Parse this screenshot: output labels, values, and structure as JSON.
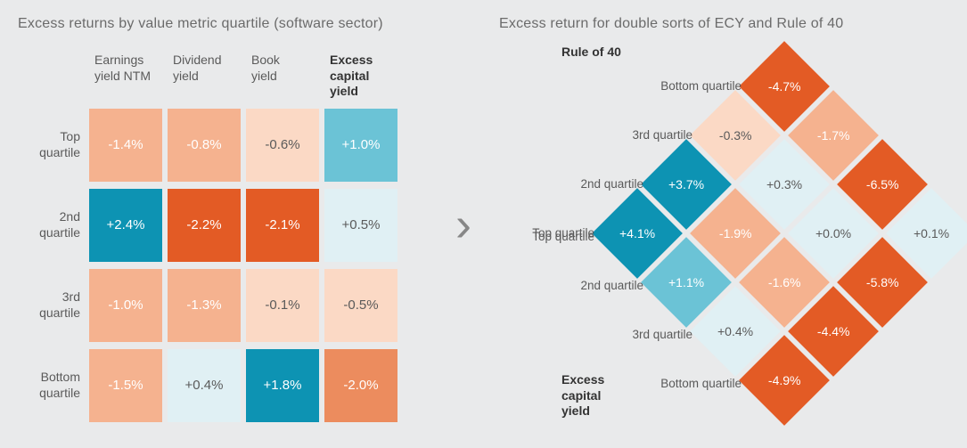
{
  "palette": {
    "bg": "#e9eaeb",
    "text": "#5a5a5a",
    "text_bold": "#333333",
    "dark_orange": "#e35b25",
    "mid_orange": "#ec8c5e",
    "light_orange": "#f5b28f",
    "pale_orange": "#fbd9c5",
    "dark_teal": "#0d93b3",
    "mid_teal": "#6bc3d6",
    "light_teal": "#c2e4ec",
    "very_light_teal": "#e0f0f4"
  },
  "left": {
    "title": "Excess returns by value metric quartile (software sector)",
    "col_headers": [
      {
        "l1": "Earnings",
        "l2": "yield NTM",
        "bold": false
      },
      {
        "l1": "Dividend",
        "l2": "yield",
        "bold": false
      },
      {
        "l1": "Book",
        "l2": "yield",
        "bold": false
      },
      {
        "l1": "Excess",
        "l2": "capital",
        "l3": "yield",
        "bold": true
      }
    ],
    "row_labels": [
      {
        "l1": "Top",
        "l2": "quartile"
      },
      {
        "l1": "2nd",
        "l2": "quartile"
      },
      {
        "l1": "3rd",
        "l2": "quartile"
      },
      {
        "l1": "Bottom",
        "l2": "quartile"
      }
    ],
    "cells": [
      [
        {
          "v": "-1.4%",
          "bg": "#f5b28f",
          "fg": "#ffffff"
        },
        {
          "v": "-0.8%",
          "bg": "#f5b28f",
          "fg": "#ffffff"
        },
        {
          "v": "-0.6%",
          "bg": "#fbd9c5",
          "fg": "#5a5a5a"
        },
        {
          "v": "+1.0%",
          "bg": "#6bc3d6",
          "fg": "#ffffff"
        }
      ],
      [
        {
          "v": "+2.4%",
          "bg": "#0d93b3",
          "fg": "#ffffff"
        },
        {
          "v": "-2.2%",
          "bg": "#e35b25",
          "fg": "#ffffff"
        },
        {
          "v": "-2.1%",
          "bg": "#e35b25",
          "fg": "#ffffff"
        },
        {
          "v": "+0.5%",
          "bg": "#e0f0f4",
          "fg": "#5a5a5a"
        }
      ],
      [
        {
          "v": "-1.0%",
          "bg": "#f5b28f",
          "fg": "#ffffff"
        },
        {
          "v": "-1.3%",
          "bg": "#f5b28f",
          "fg": "#ffffff"
        },
        {
          "v": "-0.1%",
          "bg": "#fbd9c5",
          "fg": "#5a5a5a"
        },
        {
          "v": "-0.5%",
          "bg": "#fbd9c5",
          "fg": "#5a5a5a"
        }
      ],
      [
        {
          "v": "-1.5%",
          "bg": "#f5b28f",
          "fg": "#ffffff"
        },
        {
          "v": "+0.4%",
          "bg": "#e0f0f4",
          "fg": "#5a5a5a"
        },
        {
          "v": "+1.8%",
          "bg": "#0d93b3",
          "fg": "#ffffff"
        },
        {
          "v": "-2.0%",
          "bg": "#ec8c5e",
          "fg": "#ffffff"
        }
      ]
    ]
  },
  "right": {
    "title": "Excess return for double sorts of ECY and Rule of 40",
    "axis_a": "Rule of 40",
    "axis_b_l1": "Excess",
    "axis_b_l2": "capital",
    "axis_b_l3": "yield",
    "a_quartiles": [
      "Bottom quartile",
      "3rd quartile",
      "2nd quartile",
      "Top quartile"
    ],
    "b_quartiles": [
      "Top quartile",
      "2nd quartile",
      "3rd quartile",
      "Bottom quartile"
    ],
    "grid": [
      [
        {
          "v": "-4.7%",
          "bg": "#e35b25",
          "fg": "#ffffff"
        }
      ],
      [
        {
          "v": "-0.3%",
          "bg": "#fbd9c5",
          "fg": "#5a5a5a"
        },
        {
          "v": "-1.7%",
          "bg": "#f5b28f",
          "fg": "#ffffff"
        }
      ],
      [
        {
          "v": "+3.7%",
          "bg": "#0d93b3",
          "fg": "#ffffff"
        },
        {
          "v": "+0.3%",
          "bg": "#e0f0f4",
          "fg": "#5a5a5a"
        },
        {
          "v": "-6.5%",
          "bg": "#e35b25",
          "fg": "#ffffff"
        }
      ],
      [
        {
          "v": "+4.1%",
          "bg": "#0d93b3",
          "fg": "#ffffff"
        },
        {
          "v": "-1.9%",
          "bg": "#f5b28f",
          "fg": "#ffffff"
        },
        {
          "v": "+0.0%",
          "bg": "#e0f0f4",
          "fg": "#5a5a5a"
        },
        {
          "v": "+0.1%",
          "bg": "#e0f0f4",
          "fg": "#5a5a5a"
        }
      ],
      [
        {
          "v": "+1.1%",
          "bg": "#6bc3d6",
          "fg": "#ffffff"
        },
        {
          "v": "-1.6%",
          "bg": "#f5b28f",
          "fg": "#ffffff"
        },
        {
          "v": "-5.8%",
          "bg": "#e35b25",
          "fg": "#ffffff"
        }
      ],
      [
        {
          "v": "+0.4%",
          "bg": "#e0f0f4",
          "fg": "#5a5a5a"
        },
        {
          "v": "-4.4%",
          "bg": "#e35b25",
          "fg": "#ffffff"
        }
      ],
      [
        {
          "v": "-4.9%",
          "bg": "#e35b25",
          "fg": "#ffffff"
        }
      ]
    ]
  }
}
